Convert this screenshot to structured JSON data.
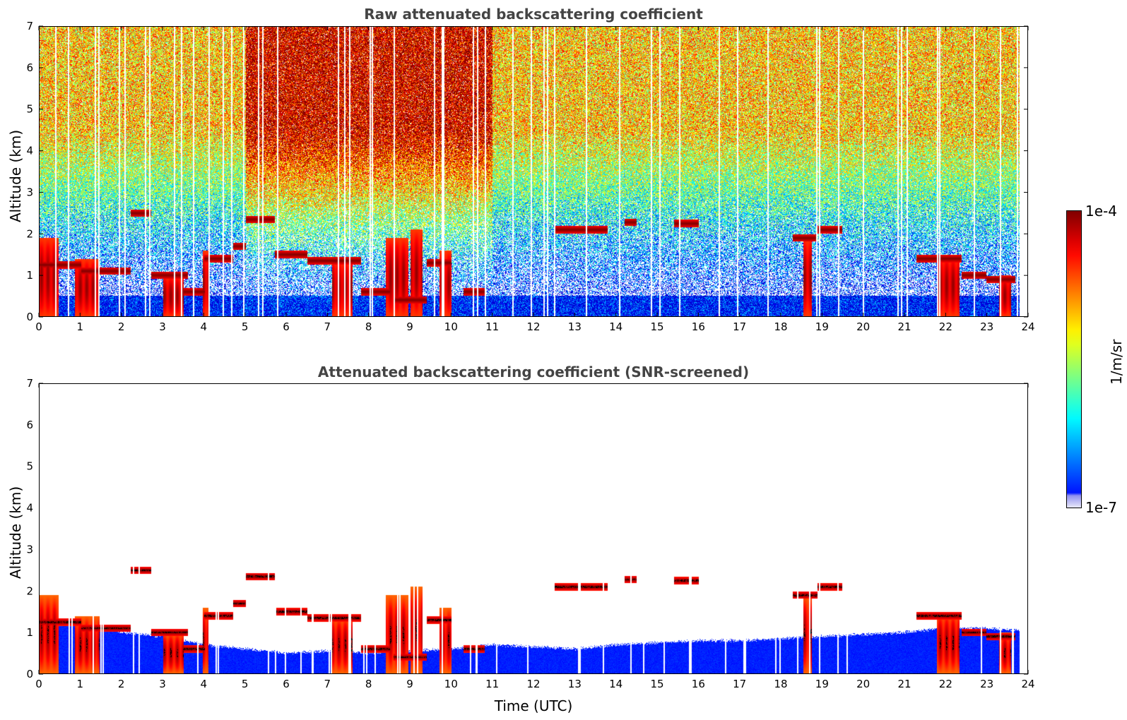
{
  "chart_data": [
    {
      "type": "heatmap",
      "title": "Raw attenuated backscattering coefficient",
      "xlabel": "",
      "ylabel": "Altitude (km)",
      "xlim": [
        0,
        24
      ],
      "ylim": [
        0,
        7
      ],
      "x_ticks": [
        "0",
        "1",
        "2",
        "3",
        "4",
        "5",
        "6",
        "7",
        "8",
        "9",
        "10",
        "11",
        "12",
        "13",
        "14",
        "15",
        "16",
        "17",
        "18",
        "19",
        "20",
        "21",
        "22",
        "23",
        "24"
      ],
      "y_ticks": [
        "0",
        "1",
        "2",
        "3",
        "4",
        "5",
        "6",
        "7"
      ],
      "data_end_time": 23.8,
      "noise_background": true,
      "layers": [
        {
          "t0": 0.0,
          "t1": 1.0,
          "alt": 1.25
        },
        {
          "t0": 1.0,
          "t1": 2.2,
          "alt": 1.1
        },
        {
          "t0": 2.2,
          "t1": 2.7,
          "alt": 2.5
        },
        {
          "t0": 2.7,
          "t1": 3.6,
          "alt": 1.0
        },
        {
          "t0": 3.5,
          "t1": 4.0,
          "alt": 0.6
        },
        {
          "t0": 4.0,
          "t1": 4.7,
          "alt": 1.4
        },
        {
          "t0": 4.7,
          "t1": 5.0,
          "alt": 1.7
        },
        {
          "t0": 5.0,
          "t1": 5.7,
          "alt": 2.35
        },
        {
          "t0": 5.7,
          "t1": 6.5,
          "alt": 1.5
        },
        {
          "t0": 6.5,
          "t1": 7.8,
          "alt": 1.35
        },
        {
          "t0": 7.8,
          "t1": 8.5,
          "alt": 0.6
        },
        {
          "t0": 8.6,
          "t1": 9.4,
          "alt": 0.4
        },
        {
          "t0": 9.4,
          "t1": 10.0,
          "alt": 1.3
        },
        {
          "t0": 10.3,
          "t1": 10.8,
          "alt": 0.6
        },
        {
          "t0": 12.5,
          "t1": 13.8,
          "alt": 2.1
        },
        {
          "t0": 14.2,
          "t1": 14.5,
          "alt": 2.28
        },
        {
          "t0": 15.4,
          "t1": 16.0,
          "alt": 2.25
        },
        {
          "t0": 18.3,
          "t1": 18.9,
          "alt": 1.9
        },
        {
          "t0": 18.9,
          "t1": 19.5,
          "alt": 2.1
        },
        {
          "t0": 21.3,
          "t1": 22.4,
          "alt": 1.4
        },
        {
          "t0": 22.4,
          "t1": 23.0,
          "alt": 1.0
        },
        {
          "t0": 23.0,
          "t1": 23.7,
          "alt": 0.9
        }
      ],
      "columns": [
        {
          "t0": 0.0,
          "t1": 0.45,
          "top": 1.9
        },
        {
          "t0": 0.85,
          "t1": 1.45,
          "top": 1.4
        },
        {
          "t0": 3.0,
          "t1": 3.5,
          "top": 1.0
        },
        {
          "t0": 3.95,
          "t1": 4.1,
          "top": 1.6
        },
        {
          "t0": 7.1,
          "t1": 7.6,
          "top": 1.4
        },
        {
          "t0": 8.4,
          "t1": 8.95,
          "top": 1.9
        },
        {
          "t0": 9.0,
          "t1": 9.3,
          "top": 2.1
        },
        {
          "t0": 9.7,
          "t1": 10.0,
          "top": 1.6
        },
        {
          "t0": 18.55,
          "t1": 18.75,
          "top": 1.9
        },
        {
          "t0": 21.8,
          "t1": 22.35,
          "top": 1.5
        },
        {
          "t0": 23.3,
          "t1": 23.6,
          "top": 1.0
        }
      ]
    },
    {
      "type": "heatmap",
      "title": "Attenuated backscattering coefficient (SNR-screened)",
      "xlabel": "Time (UTC)",
      "ylabel": "Altitude (km)",
      "xlim": [
        0,
        24
      ],
      "ylim": [
        0,
        7
      ],
      "x_ticks": [
        "0",
        "1",
        "2",
        "3",
        "4",
        "5",
        "6",
        "7",
        "8",
        "9",
        "10",
        "11",
        "12",
        "13",
        "14",
        "15",
        "16",
        "17",
        "18",
        "19",
        "20",
        "21",
        "22",
        "23",
        "24"
      ],
      "y_ticks": [
        "0",
        "1",
        "2",
        "3",
        "4",
        "5",
        "6",
        "7"
      ],
      "data_end_time": 23.8,
      "noise_background": false,
      "boundary_layer_top": [
        [
          0,
          1.3
        ],
        [
          1,
          1.2
        ],
        [
          2,
          1.0
        ],
        [
          3,
          0.9
        ],
        [
          4,
          0.7
        ],
        [
          5,
          0.6
        ],
        [
          6,
          0.5
        ],
        [
          7,
          0.55
        ],
        [
          8,
          0.5
        ],
        [
          9,
          0.55
        ],
        [
          10,
          0.6
        ],
        [
          11,
          0.7
        ],
        [
          12,
          0.65
        ],
        [
          13,
          0.6
        ],
        [
          14,
          0.7
        ],
        [
          15,
          0.75
        ],
        [
          16,
          0.8
        ],
        [
          17,
          0.8
        ],
        [
          18,
          0.85
        ],
        [
          19,
          0.9
        ],
        [
          20,
          0.95
        ],
        [
          21,
          1.0
        ],
        [
          22,
          1.1
        ],
        [
          23,
          1.1
        ],
        [
          23.8,
          1.05
        ]
      ]
    }
  ],
  "colorbar": {
    "label": "1/m/sr",
    "max_label": "1e-4",
    "min_label": "1e-7",
    "scale": "log",
    "range": [
      1e-07,
      0.0001
    ],
    "colormap": "jet"
  }
}
